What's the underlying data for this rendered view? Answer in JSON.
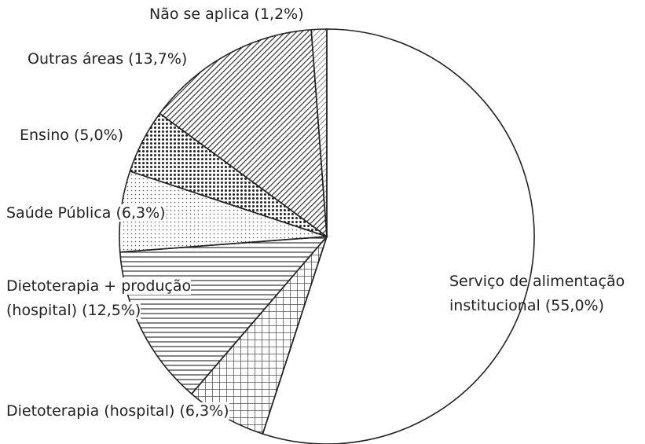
{
  "chart_data": {
    "type": "pie",
    "categories": [
      "Serviço de alimentação institucional",
      "Dietoterapia (hospital)",
      "Dietoterapia + produção (hospital)",
      "Saúde Pública",
      "Ensino",
      "Outras áreas",
      "Não se aplica"
    ],
    "values": [
      55.0,
      6.3,
      12.5,
      6.3,
      5.0,
      13.7,
      1.2
    ],
    "value_labels": [
      "(55,0%)",
      "(6,3%)",
      "(12,5%)",
      "(6,3%)",
      "(5,0%)",
      "(13,7%)",
      "(1,2%)"
    ]
  }
}
